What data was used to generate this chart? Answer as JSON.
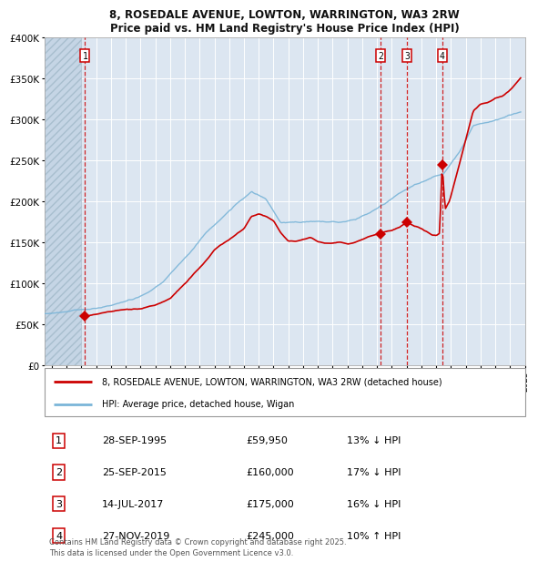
{
  "title_line1": "8, ROSEDALE AVENUE, LOWTON, WARRINGTON, WA3 2RW",
  "title_line2": "Price paid vs. HM Land Registry's House Price Index (HPI)",
  "plot_bg_color": "#dce6f1",
  "line_color_red": "#cc0000",
  "line_color_blue": "#7ab5d8",
  "ylim": [
    0,
    400000
  ],
  "yticks": [
    0,
    50000,
    100000,
    150000,
    200000,
    250000,
    300000,
    350000,
    400000
  ],
  "ytick_labels": [
    "£0",
    "£50K",
    "£100K",
    "£150K",
    "£200K",
    "£250K",
    "£300K",
    "£350K",
    "£400K"
  ],
  "sale_years": [
    1995.747,
    2015.731,
    2017.535,
    2019.9
  ],
  "sale_prices": [
    59950,
    160000,
    175000,
    245000
  ],
  "sale_labels": [
    "1",
    "2",
    "3",
    "4"
  ],
  "sale_info": [
    {
      "label": "1",
      "date": "28-SEP-1995",
      "price": "£59,950",
      "hpi": "13% ↓ HPI"
    },
    {
      "label": "2",
      "date": "25-SEP-2015",
      "price": "£160,000",
      "hpi": "17% ↓ HPI"
    },
    {
      "label": "3",
      "date": "14-JUL-2017",
      "price": "£175,000",
      "hpi": "16% ↓ HPI"
    },
    {
      "label": "4",
      "date": "27-NOV-2019",
      "price": "£245,000",
      "hpi": "10% ↑ HPI"
    }
  ],
  "legend_label_red": "8, ROSEDALE AVENUE, LOWTON, WARRINGTON, WA3 2RW (detached house)",
  "legend_label_blue": "HPI: Average price, detached house, Wigan",
  "footer": "Contains HM Land Registry data © Crown copyright and database right 2025.\nThis data is licensed under the Open Government Licence v3.0.",
  "hatch_end_year": 1995.5,
  "xmin": 1993.0,
  "xmax": 2025.4
}
